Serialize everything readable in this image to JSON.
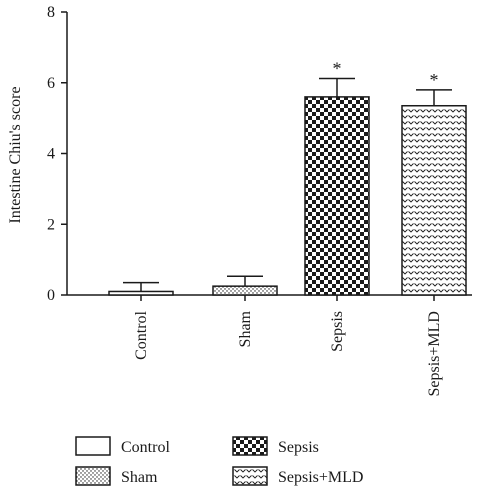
{
  "chart_data": {
    "type": "bar",
    "ylabel": "Intestine Chiu's score",
    "ylim": [
      0,
      8
    ],
    "yticks": [
      "0",
      "2",
      "4",
      "6",
      "8"
    ],
    "categories": [
      "Control",
      "Sham",
      "Sepsis",
      "Sepsis+MLD"
    ],
    "values": [
      0.1,
      0.25,
      5.6,
      5.35
    ],
    "errors": [
      0.25,
      0.28,
      0.52,
      0.45
    ],
    "significance": [
      "",
      "",
      "*",
      "*"
    ],
    "patterns": [
      "none",
      "dots",
      "checker",
      "chevron"
    ],
    "legend": [
      {
        "label": "Control",
        "pattern": "none"
      },
      {
        "label": "Sham",
        "pattern": "dots"
      },
      {
        "label": "Sepsis",
        "pattern": "checker"
      },
      {
        "label": "Sepsis+MLD",
        "pattern": "chevron"
      }
    ],
    "colors": {
      "ink": "#1a1a1a",
      "fill": "#ffffff"
    }
  }
}
